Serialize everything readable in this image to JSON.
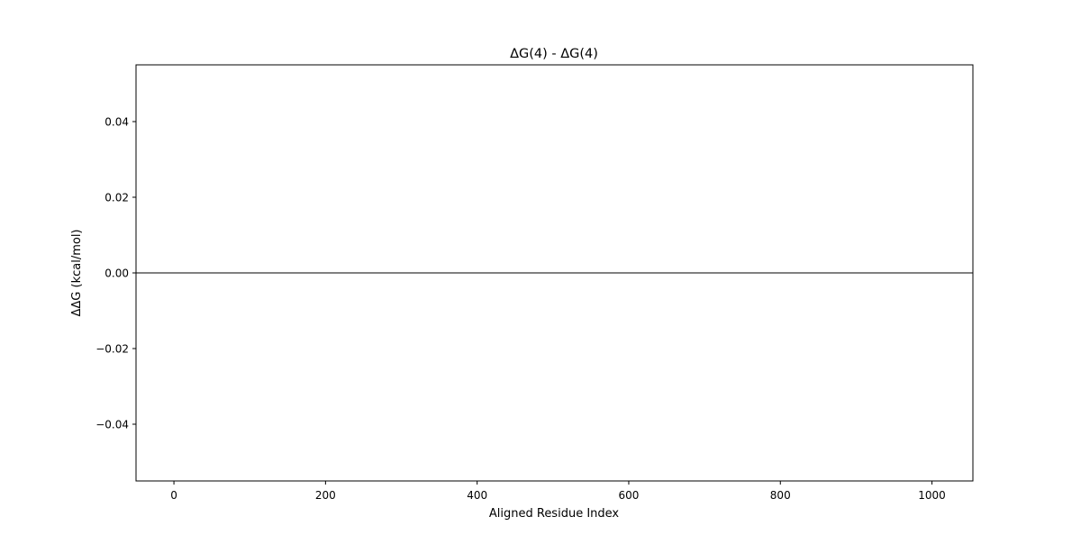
{
  "chart_data": {
    "type": "line",
    "title": "ΔG(4) - ΔG(4)",
    "xlabel": "Aligned Residue Index",
    "ylabel": "ΔΔG (kcal/mol)",
    "xlim": [
      -50,
      1054
    ],
    "ylim": [
      -0.055,
      0.055
    ],
    "xticks": [
      0,
      200,
      400,
      600,
      800,
      1000
    ],
    "xtick_labels": [
      "0",
      "200",
      "400",
      "600",
      "800",
      "1000"
    ],
    "yticks": [
      -0.04,
      -0.02,
      0.0,
      0.02,
      0.04
    ],
    "ytick_labels": [
      "−0.04",
      "−0.02",
      "0.00",
      "0.02",
      "0.04"
    ],
    "hline": {
      "y": 0,
      "color": "#000000"
    },
    "grid": false,
    "legend": "none"
  }
}
